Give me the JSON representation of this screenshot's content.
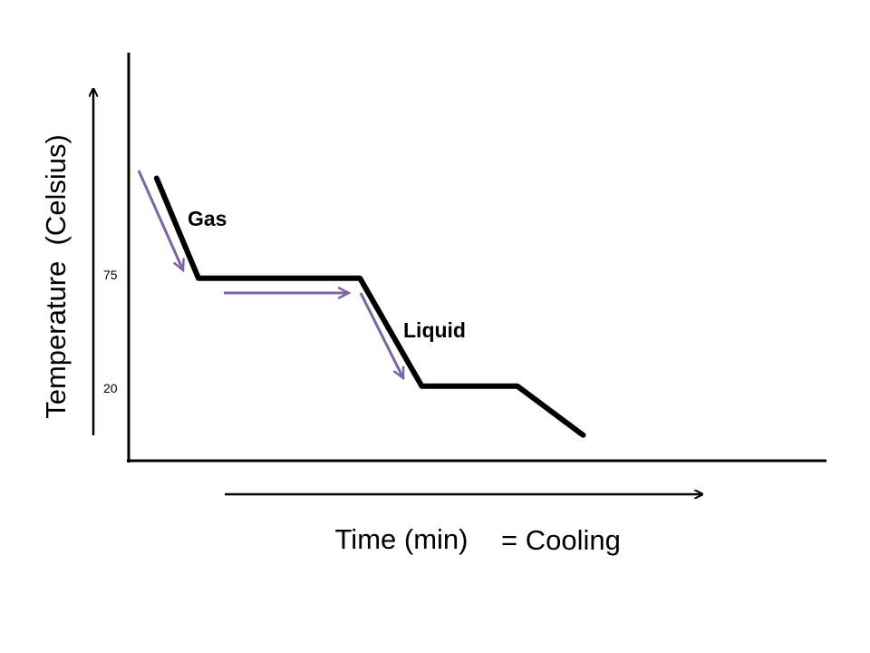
{
  "chart_data": {
    "type": "line",
    "title": "",
    "xlabel": "Time (min)",
    "ylabel": "Temperature  (Celsius)",
    "note": "= Cooling",
    "y_ticks": [
      {
        "value": 75,
        "label": "75"
      },
      {
        "value": 20,
        "label": "20"
      }
    ],
    "series": [
      {
        "values": [
          {
            "x": 0.7,
            "y": 126
          },
          {
            "x": 1.75,
            "y": 75
          },
          {
            "x": 5.8,
            "y": 75
          },
          {
            "x": 7.35,
            "y": 20
          },
          {
            "x": 9.75,
            "y": 20
          },
          {
            "x": 11.4,
            "y": -5
          }
        ]
      }
    ],
    "annotations": [
      {
        "text": "Gas",
        "x": 1.35,
        "y": 103
      },
      {
        "text": "Liquid",
        "x": 7.0,
        "y": 48
      }
    ],
    "xlim": [
      0,
      17.5
    ],
    "ylim": [
      -18,
      190
    ],
    "grid": false,
    "colors": {
      "line": "#000000",
      "process_arrows": "#8064a2",
      "axes": "#000000"
    }
  }
}
